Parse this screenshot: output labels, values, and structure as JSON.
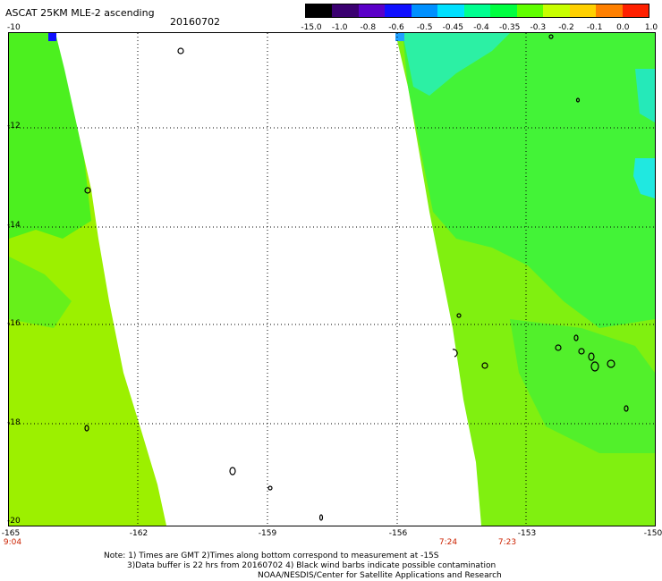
{
  "header": {
    "title": "ASCAT 25KM MLE-2 ascending",
    "date": "20160702"
  },
  "colorbar": {
    "labels": [
      "-15.0",
      "-1.0",
      "-0.8",
      "-0.6",
      "-0.5",
      "-0.45",
      "-0.4",
      "-0.35",
      "-0.3",
      "-0.2",
      "-0.1",
      "0.0",
      "1.0"
    ],
    "colors": [
      "#000000",
      "#3a0070",
      "#5a00c8",
      "#1010ff",
      "#0090ff",
      "#00e0ff",
      "#00ff90",
      "#00ff40",
      "#60ff00",
      "#c8ff00",
      "#ffd000",
      "#ff8000",
      "#ff2000"
    ]
  },
  "axes": {
    "y_labels": [
      "-10",
      "-12",
      "-14",
      "-16",
      "-18",
      "-20"
    ],
    "x_labels": [
      "-165",
      "-162",
      "-159",
      "-156",
      "-153",
      "-150"
    ]
  },
  "times": {
    "t1": "9:04",
    "t2": "7:24",
    "t3": "7:23"
  },
  "footer": {
    "line1": "Note: 1) Times are GMT 2)Times along bottom correspond to measurement at -15S",
    "line2": "3)Data buffer is 22 hrs from 20160702 4) Black wind barbs indicate possible contamination",
    "line3": "NOAA/NESDIS/Center for Satellite Applications and Research"
  }
}
